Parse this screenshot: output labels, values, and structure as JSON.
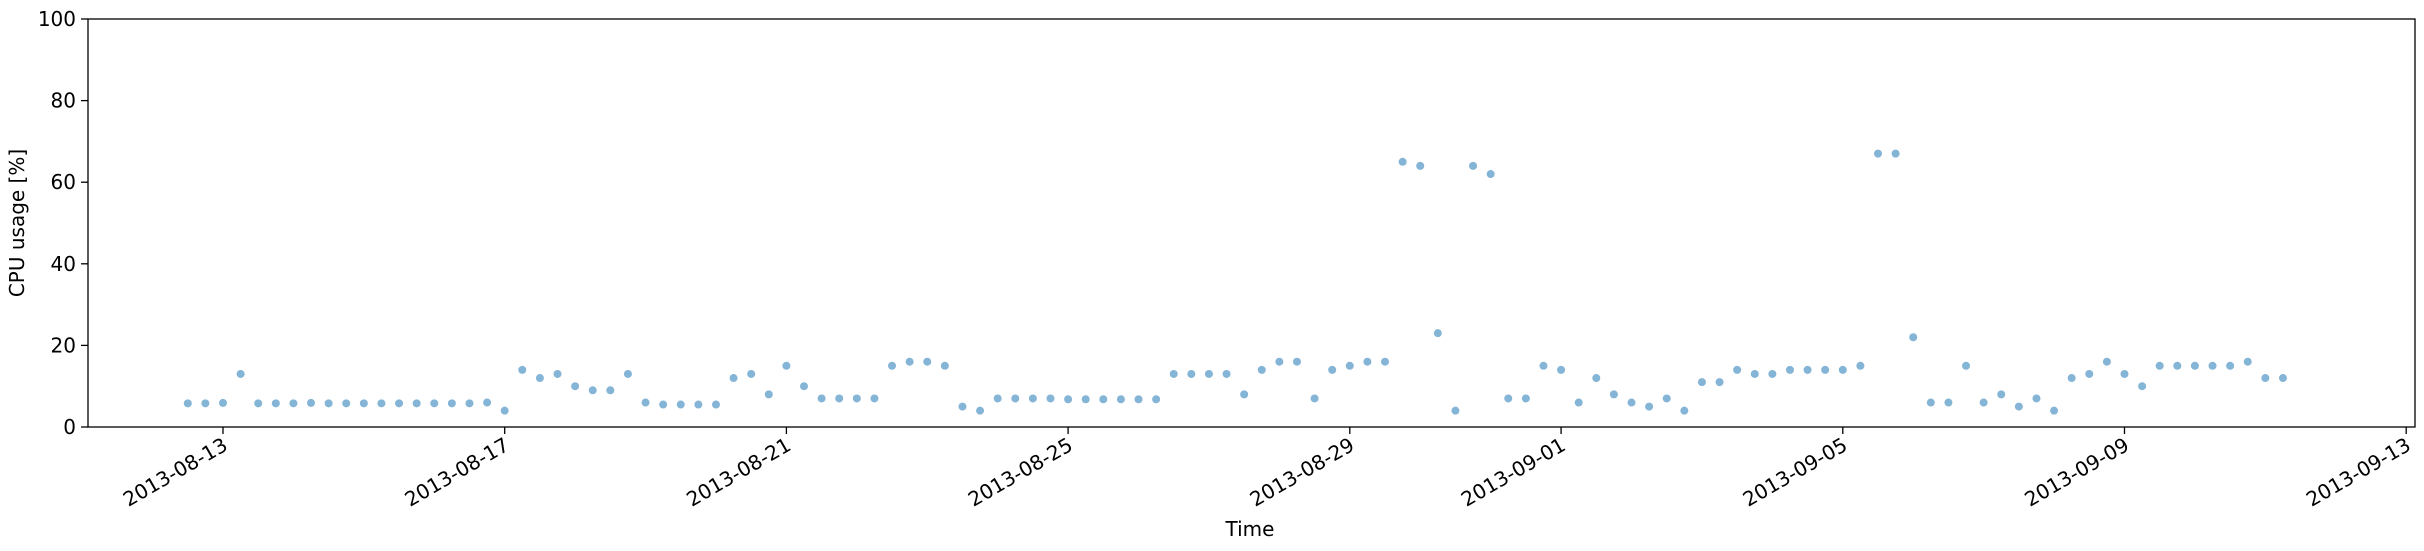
{
  "chart_data": {
    "type": "scatter",
    "xlabel": "Time",
    "ylabel": "CPU usage [%]",
    "xlim": [
      "2013-08-11 02:00",
      "2013-09-13 03:00"
    ],
    "xticks": [
      "2013-08-13",
      "2013-08-17",
      "2013-08-21",
      "2013-08-25",
      "2013-08-29",
      "2013-09-01",
      "2013-09-05",
      "2013-09-09",
      "2013-09-13"
    ],
    "ylim": [
      0,
      100
    ],
    "yticks": [
      0,
      20,
      40,
      60,
      80,
      100
    ],
    "color": "#1f77b4",
    "x": [
      "2013-08-12 12:00",
      "2013-08-12 18:00",
      "2013-08-13 00:00",
      "2013-08-13 06:00",
      "2013-08-13 12:00",
      "2013-08-13 18:00",
      "2013-08-14 00:00",
      "2013-08-14 06:00",
      "2013-08-14 12:00",
      "2013-08-14 18:00",
      "2013-08-15 00:00",
      "2013-08-15 06:00",
      "2013-08-15 12:00",
      "2013-08-15 18:00",
      "2013-08-16 00:00",
      "2013-08-16 06:00",
      "2013-08-16 12:00",
      "2013-08-16 18:00",
      "2013-08-17 00:00",
      "2013-08-17 06:00",
      "2013-08-17 12:00",
      "2013-08-17 18:00",
      "2013-08-18 00:00",
      "2013-08-18 06:00",
      "2013-08-18 12:00",
      "2013-08-18 18:00",
      "2013-08-19 00:00",
      "2013-08-19 06:00",
      "2013-08-19 12:00",
      "2013-08-19 18:00",
      "2013-08-20 00:00",
      "2013-08-20 06:00",
      "2013-08-20 12:00",
      "2013-08-20 18:00",
      "2013-08-21 00:00",
      "2013-08-21 06:00",
      "2013-08-21 12:00",
      "2013-08-21 18:00",
      "2013-08-22 00:00",
      "2013-08-22 06:00",
      "2013-08-22 12:00",
      "2013-08-22 18:00",
      "2013-08-23 00:00",
      "2013-08-23 06:00",
      "2013-08-23 12:00",
      "2013-08-23 18:00",
      "2013-08-24 00:00",
      "2013-08-24 06:00",
      "2013-08-24 12:00",
      "2013-08-24 18:00",
      "2013-08-25 00:00",
      "2013-08-25 06:00",
      "2013-08-25 12:00",
      "2013-08-25 18:00",
      "2013-08-26 00:00",
      "2013-08-26 06:00",
      "2013-08-26 12:00",
      "2013-08-26 18:00",
      "2013-08-27 00:00",
      "2013-08-27 06:00",
      "2013-08-27 12:00",
      "2013-08-27 18:00",
      "2013-08-28 00:00",
      "2013-08-28 06:00",
      "2013-08-28 12:00",
      "2013-08-28 18:00",
      "2013-08-29 00:00",
      "2013-08-29 06:00",
      "2013-08-29 12:00",
      "2013-08-29 18:00",
      "2013-08-30 00:00",
      "2013-08-30 06:00",
      "2013-08-30 12:00",
      "2013-08-30 18:00",
      "2013-08-31 00:00",
      "2013-08-31 06:00",
      "2013-08-31 12:00",
      "2013-08-31 18:00",
      "2013-09-01 00:00",
      "2013-09-01 06:00",
      "2013-09-01 12:00",
      "2013-09-01 18:00",
      "2013-09-02 00:00",
      "2013-09-02 06:00",
      "2013-09-02 12:00",
      "2013-09-02 18:00",
      "2013-09-03 00:00",
      "2013-09-03 06:00",
      "2013-09-03 12:00",
      "2013-09-03 18:00",
      "2013-09-04 00:00",
      "2013-09-04 06:00",
      "2013-09-04 12:00",
      "2013-09-04 18:00",
      "2013-09-05 00:00",
      "2013-09-05 06:00",
      "2013-09-05 12:00",
      "2013-09-05 18:00",
      "2013-09-06 00:00",
      "2013-09-06 06:00",
      "2013-09-06 12:00",
      "2013-09-06 18:00",
      "2013-09-07 00:00",
      "2013-09-07 06:00",
      "2013-09-07 12:00",
      "2013-09-07 18:00",
      "2013-09-08 00:00",
      "2013-09-08 06:00",
      "2013-09-08 12:00",
      "2013-09-08 18:00",
      "2013-09-09 00:00",
      "2013-09-09 06:00",
      "2013-09-09 12:00",
      "2013-09-09 18:00",
      "2013-09-10 00:00",
      "2013-09-10 06:00",
      "2013-09-10 12:00",
      "2013-09-10 18:00",
      "2013-09-11 00:00",
      "2013-09-11 06:00"
    ],
    "values": [
      5.8,
      5.8,
      5.9,
      13,
      5.8,
      5.8,
      5.8,
      5.9,
      5.8,
      5.8,
      5.8,
      5.8,
      5.8,
      5.8,
      5.8,
      5.8,
      5.8,
      6,
      4,
      14,
      12,
      13,
      10,
      9,
      9,
      13,
      6,
      5.5,
      5.5,
      5.5,
      5.5,
      12,
      13,
      8,
      15,
      10,
      7,
      7,
      7,
      7,
      15,
      16,
      16,
      15,
      5,
      4,
      7,
      7,
      7,
      7,
      6.8,
      6.8,
      6.8,
      6.8,
      6.8,
      6.8,
      13,
      13,
      13,
      13,
      8,
      14,
      16,
      16,
      7,
      14,
      15,
      16,
      16,
      65,
      64,
      23,
      4,
      64,
      62,
      7,
      7,
      15,
      14,
      6,
      12,
      8,
      6,
      5,
      7,
      4,
      11,
      11,
      14,
      13,
      13,
      14,
      14,
      14,
      14,
      15,
      67,
      67,
      22,
      6,
      6,
      15,
      6,
      8,
      5,
      7,
      4,
      12,
      13,
      16,
      13,
      10,
      15,
      15,
      15,
      15,
      15,
      16,
      12,
      12
    ]
  }
}
